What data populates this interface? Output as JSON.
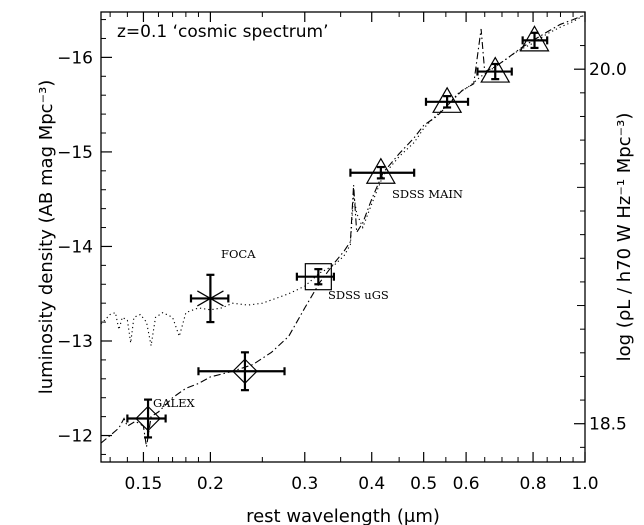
{
  "chart_data": {
    "type": "scatter",
    "title": "z=0.1 ‘cosmic spectrum’",
    "xlabel": "rest wavelength (μm)",
    "ylabel": "luminosity density (AB mag Mpc⁻³)",
    "ylabel_right": "log (ρL / h70 W Hz⁻¹ Mpc⁻³)",
    "x_scale": "log",
    "xlim": [
      0.125,
      1.0
    ],
    "ylim": [
      -11.72,
      -16.48
    ],
    "x_ticks": [
      0.15,
      0.2,
      0.3,
      0.4,
      0.5,
      0.6,
      0.8,
      1.0
    ],
    "x_tick_labels": [
      "0.15",
      "0.2",
      "0.3",
      "0.4",
      "0.5",
      "0.6",
      "0.8",
      "1.0"
    ],
    "y_ticks": [
      -12,
      -13,
      -14,
      -15,
      -16
    ],
    "y_tick_labels": [
      "−12",
      "−13",
      "−14",
      "−15",
      "−16"
    ],
    "right_y_ticks": [
      18.5,
      20.0
    ],
    "right_y_tick_labels": [
      "18.5",
      "20.0"
    ],
    "annotations": [
      "FOCA",
      "GALEX",
      "SDSS uGS",
      "SDSS MAIN"
    ],
    "series": [
      {
        "marker": "diamond",
        "points": [
          {
            "x": 0.153,
            "y": -12.18,
            "xerr": [
              0.14,
              0.165
            ],
            "yerr": [
              0.2,
              0.2
            ]
          },
          {
            "x": 0.232,
            "y": -12.68,
            "xerr": [
              0.19,
              0.275
            ],
            "yerr": [
              0.2,
              0.2
            ]
          }
        ]
      },
      {
        "marker": "asterisk",
        "points": [
          {
            "x": 0.2,
            "y": -13.45,
            "xerr": [
              0.184,
              0.216
            ],
            "yerr": [
              0.25,
              0.25
            ]
          }
        ]
      },
      {
        "marker": "square",
        "points": [
          {
            "x": 0.318,
            "y": -13.68,
            "xerr": [
              0.29,
              0.34
            ],
            "yerr": [
              0.08,
              0.08
            ]
          }
        ]
      },
      {
        "marker": "triangle",
        "points": [
          {
            "x": 0.416,
            "y": -14.78,
            "xerr": [
              0.365,
              0.48
            ],
            "yerr": [
              0.06,
              0.06
            ]
          },
          {
            "x": 0.553,
            "y": -15.53,
            "xerr": [
              0.505,
              0.605
            ],
            "yerr": [
              0.06,
              0.06
            ]
          },
          {
            "x": 0.68,
            "y": -15.85,
            "xerr": [
              0.63,
              0.73
            ],
            "yerr": [
              0.08,
              0.08
            ]
          },
          {
            "x": 0.805,
            "y": -16.18,
            "xerr": [
              0.765,
              0.85
            ],
            "yerr": [
              0.08,
              0.08
            ]
          }
        ]
      },
      {
        "style": "dotted",
        "points": [
          [
            0.125,
            -13.18
          ],
          [
            0.13,
            -13.28
          ],
          [
            0.133,
            -13.3
          ],
          [
            0.135,
            -13.12
          ],
          [
            0.137,
            -13.25
          ],
          [
            0.14,
            -13.22
          ],
          [
            0.142,
            -12.98
          ],
          [
            0.144,
            -13.25
          ],
          [
            0.148,
            -13.28
          ],
          [
            0.152,
            -13.2
          ],
          [
            0.155,
            -12.95
          ],
          [
            0.158,
            -13.25
          ],
          [
            0.163,
            -13.3
          ],
          [
            0.17,
            -13.25
          ],
          [
            0.175,
            -13.05
          ],
          [
            0.18,
            -13.3
          ],
          [
            0.19,
            -13.35
          ],
          [
            0.2,
            -13.33
          ],
          [
            0.21,
            -13.35
          ],
          [
            0.22,
            -13.4
          ],
          [
            0.235,
            -13.38
          ],
          [
            0.25,
            -13.4
          ],
          [
            0.265,
            -13.45
          ],
          [
            0.28,
            -13.5
          ],
          [
            0.3,
            -13.58
          ],
          [
            0.32,
            -13.72
          ],
          [
            0.34,
            -13.8
          ],
          [
            0.355,
            -13.9
          ],
          [
            0.365,
            -14.02
          ],
          [
            0.37,
            -14.55
          ],
          [
            0.375,
            -14.35
          ],
          [
            0.385,
            -14.2
          ],
          [
            0.4,
            -14.45
          ],
          [
            0.42,
            -14.75
          ],
          [
            0.45,
            -14.95
          ],
          [
            0.48,
            -15.1
          ],
          [
            0.5,
            -15.25
          ],
          [
            0.52,
            -15.35
          ],
          [
            0.55,
            -15.48
          ],
          [
            0.58,
            -15.62
          ],
          [
            0.61,
            -15.7
          ],
          [
            0.64,
            -15.8
          ],
          [
            0.66,
            -15.85
          ],
          [
            0.7,
            -15.95
          ],
          [
            0.75,
            -16.07
          ],
          [
            0.8,
            -16.15
          ],
          [
            0.85,
            -16.25
          ],
          [
            0.9,
            -16.32
          ],
          [
            0.95,
            -16.38
          ],
          [
            1.0,
            -16.45
          ]
        ]
      },
      {
        "style": "dashed",
        "points": [
          [
            0.125,
            -11.92
          ],
          [
            0.13,
            -12.0
          ],
          [
            0.135,
            -12.08
          ],
          [
            0.138,
            -12.18
          ],
          [
            0.14,
            -12.1
          ],
          [
            0.145,
            -12.15
          ],
          [
            0.15,
            -12.1
          ],
          [
            0.152,
            -11.88
          ],
          [
            0.155,
            -12.2
          ],
          [
            0.16,
            -12.25
          ],
          [
            0.17,
            -12.4
          ],
          [
            0.18,
            -12.5
          ],
          [
            0.19,
            -12.55
          ],
          [
            0.2,
            -12.62
          ],
          [
            0.21,
            -12.65
          ],
          [
            0.22,
            -12.68
          ],
          [
            0.24,
            -12.75
          ],
          [
            0.26,
            -12.88
          ],
          [
            0.28,
            -13.05
          ],
          [
            0.3,
            -13.35
          ],
          [
            0.32,
            -13.62
          ],
          [
            0.34,
            -13.82
          ],
          [
            0.355,
            -13.95
          ],
          [
            0.365,
            -14.05
          ],
          [
            0.37,
            -14.65
          ],
          [
            0.375,
            -14.15
          ],
          [
            0.385,
            -14.25
          ],
          [
            0.4,
            -14.5
          ],
          [
            0.42,
            -14.78
          ],
          [
            0.45,
            -14.98
          ],
          [
            0.48,
            -15.15
          ],
          [
            0.5,
            -15.28
          ],
          [
            0.53,
            -15.38
          ],
          [
            0.56,
            -15.52
          ],
          [
            0.59,
            -15.65
          ],
          [
            0.62,
            -15.72
          ],
          [
            0.64,
            -16.3
          ],
          [
            0.65,
            -15.85
          ],
          [
            0.68,
            -15.9
          ],
          [
            0.72,
            -16.0
          ],
          [
            0.76,
            -16.1
          ],
          [
            0.8,
            -16.18
          ],
          [
            0.85,
            -16.27
          ],
          [
            0.9,
            -16.35
          ],
          [
            0.95,
            -16.4
          ],
          [
            1.0,
            -16.45
          ]
        ]
      }
    ]
  }
}
